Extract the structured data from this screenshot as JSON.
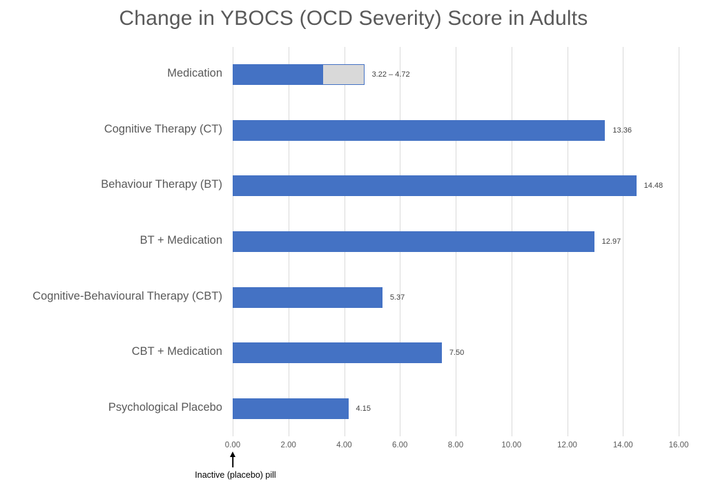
{
  "chart_data": {
    "type": "bar",
    "orientation": "horizontal",
    "title": "Change in YBOCS (OCD Severity) Score in Adults",
    "categories": [
      "Medication",
      "Cognitive Therapy (CT)",
      "Behaviour Therapy (BT)",
      "BT + Medication",
      "Cognitive-Behavioural Therapy (CBT)",
      "CBT + Medication",
      "Psychological Placebo"
    ],
    "values": [
      3.22,
      13.36,
      14.48,
      12.97,
      5.37,
      7.5,
      4.15
    ],
    "range_high": [
      4.72,
      null,
      null,
      null,
      null,
      null,
      null
    ],
    "data_labels": [
      "3.22 – 4.72",
      "13.36",
      "14.48",
      "12.97",
      "5.37",
      "7.50",
      "4.15"
    ],
    "xlabel": "",
    "ylabel": "",
    "xlim": [
      0,
      16
    ],
    "x_tick_values": [
      0,
      2,
      4,
      6,
      8,
      10,
      12,
      14,
      16
    ],
    "x_tick_labels": [
      "0.00",
      "2.00",
      "4.00",
      "6.00",
      "8.00",
      "10.00",
      "12.00",
      "14.00",
      "16.00"
    ],
    "grid": true,
    "legend": false,
    "annotation": {
      "text": "Inactive (placebo) pill",
      "x_value": 0,
      "arrow_direction": "up"
    },
    "colors": {
      "bar": "#4472c4",
      "range_fill": "#d9d9d9",
      "range_border": "#4472c4",
      "gridline": "#d9d9d9",
      "title": "#595959",
      "category_label": "#595959",
      "value_label": "#404040",
      "axis_tick_label": "#595959",
      "annotation_text": "#000000",
      "background": "#ffffff"
    }
  }
}
